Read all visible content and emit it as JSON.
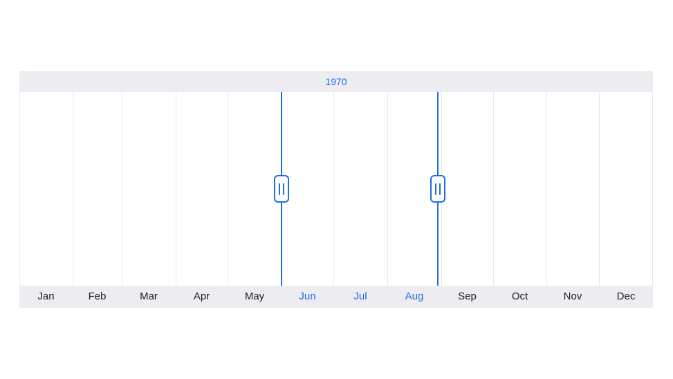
{
  "range_selector": {
    "year": "1970",
    "months": [
      "Jan",
      "Feb",
      "Mar",
      "Apr",
      "May",
      "Jun",
      "Jul",
      "Aug",
      "Sep",
      "Oct",
      "Nov",
      "Dec"
    ],
    "selected_months": [
      "Jun",
      "Jul",
      "Aug"
    ],
    "selection_start": "Jun",
    "selection_end": "Aug",
    "colors": {
      "accent": "#1a6fe8",
      "bar_background": "#ededf1",
      "gridline": "#e8e8ec",
      "label": "#1c1c1e"
    },
    "icons": {
      "start_thumb": "grip-handle-icon",
      "end_thumb": "grip-handle-icon"
    }
  }
}
